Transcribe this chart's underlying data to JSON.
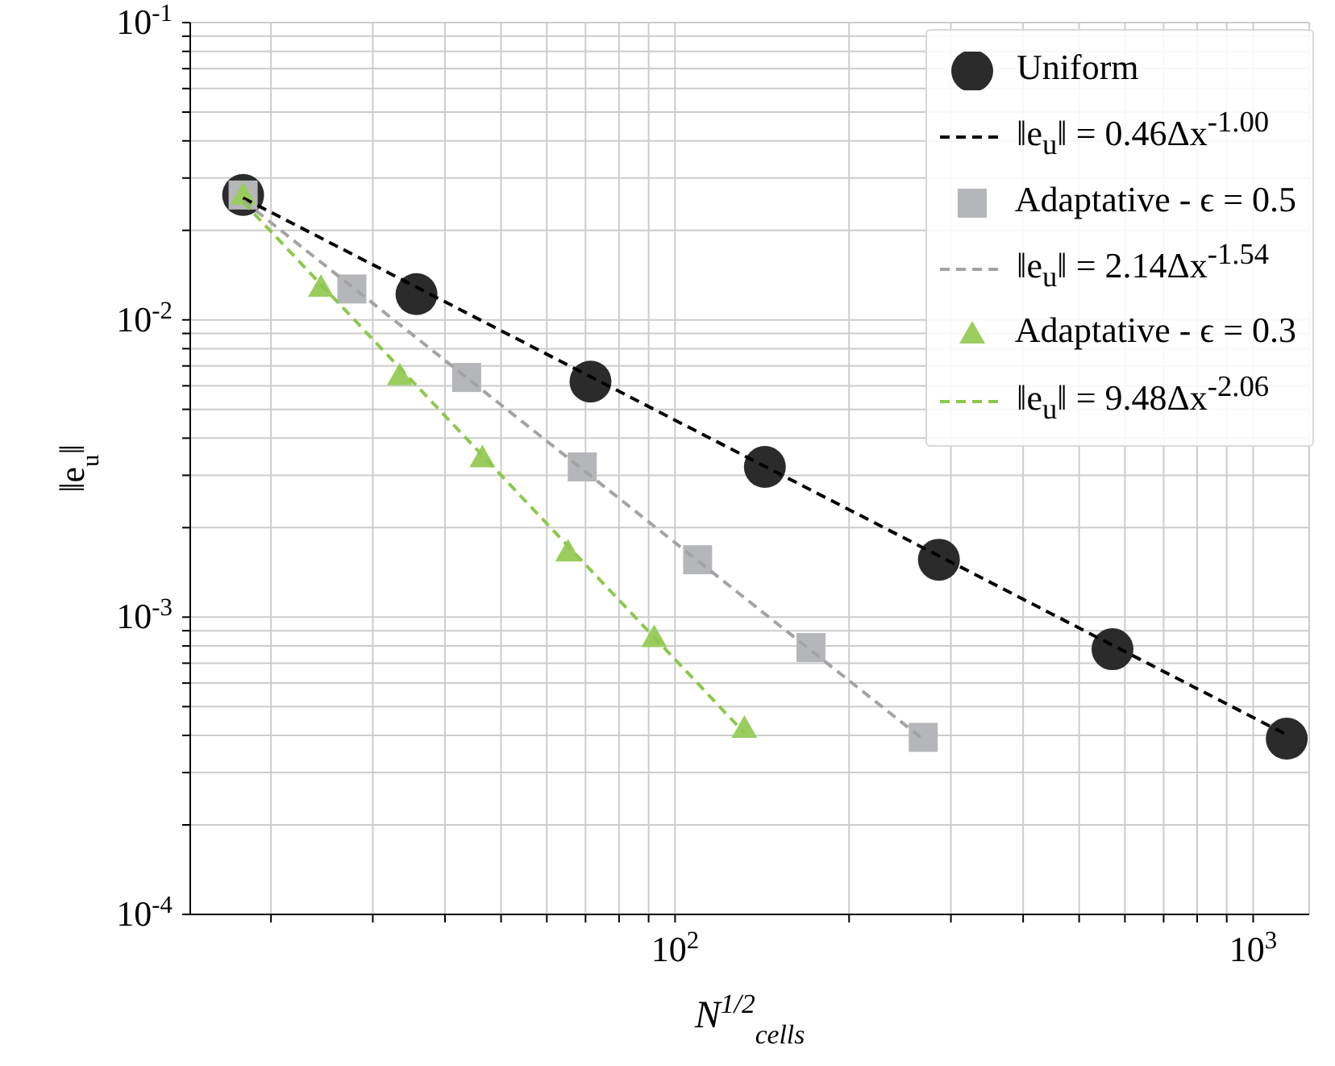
{
  "chart_data": {
    "type": "scatter",
    "xlabel": "N$^{1/2}$$_{cells}$",
    "ylabel": "‖e$_{u}$‖",
    "log": "xy",
    "grid": true,
    "legend": "top right",
    "xlim": [
      14.5,
      1250
    ],
    "ylim": [
      0.0001,
      0.1
    ],
    "xticks": [
      {
        "value": 20,
        "label": null
      },
      {
        "value": 30,
        "label": null
      },
      {
        "value": 40,
        "label": null
      },
      {
        "value": 50,
        "label": null
      },
      {
        "value": 60,
        "label": null
      },
      {
        "value": 70,
        "label": null
      },
      {
        "value": 80,
        "label": null
      },
      {
        "value": 90,
        "label": null
      },
      {
        "value": 100,
        "label": "10$^{2}$"
      },
      {
        "value": 200,
        "label": null
      },
      {
        "value": 300,
        "label": null
      },
      {
        "value": 400,
        "label": null
      },
      {
        "value": 500,
        "label": null
      },
      {
        "value": 600,
        "label": null
      },
      {
        "value": 700,
        "label": null
      },
      {
        "value": 800,
        "label": null
      },
      {
        "value": 900,
        "label": null
      },
      {
        "value": 1000,
        "label": "10$^{3}$"
      }
    ],
    "yticks": [
      {
        "value": 0.0001,
        "label": "10$^{-4}$"
      },
      {
        "value": 0.0002,
        "label": null
      },
      {
        "value": 0.0003,
        "label": null
      },
      {
        "value": 0.0004,
        "label": null
      },
      {
        "value": 0.0005,
        "label": null
      },
      {
        "value": 0.0006,
        "label": null
      },
      {
        "value": 0.0007,
        "label": null
      },
      {
        "value": 0.0008,
        "label": null
      },
      {
        "value": 0.0009,
        "label": null
      },
      {
        "value": 0.001,
        "label": "10$^{-3}$"
      },
      {
        "value": 0.002,
        "label": null
      },
      {
        "value": 0.003,
        "label": null
      },
      {
        "value": 0.004,
        "label": null
      },
      {
        "value": 0.005,
        "label": null
      },
      {
        "value": 0.006,
        "label": null
      },
      {
        "value": 0.007,
        "label": null
      },
      {
        "value": 0.008,
        "label": null
      },
      {
        "value": 0.009,
        "label": null
      },
      {
        "value": 0.01,
        "label": "10$^{-2}$"
      },
      {
        "value": 0.02,
        "label": null
      },
      {
        "value": 0.03,
        "label": null
      },
      {
        "value": 0.04,
        "label": null
      },
      {
        "value": 0.05,
        "label": null
      },
      {
        "value": 0.06,
        "label": null
      },
      {
        "value": 0.07,
        "label": null
      },
      {
        "value": 0.08,
        "label": null
      },
      {
        "value": 0.09,
        "label": null
      },
      {
        "value": 0.1,
        "label": "10$^{-1}$"
      }
    ],
    "series": [
      {
        "name": "Uniform",
        "marker": "circle",
        "color": "#2b2b2b",
        "x": [
          17.9,
          35.7,
          71.4,
          143,
          286,
          571,
          1143
        ],
        "values": [
          0.0263,
          0.0122,
          0.0062,
          0.0032,
          0.00156,
          0.00078,
          0.00039
        ]
      },
      {
        "name": "‖e$_{u}$‖ = 0.46Δx$^{-1.00}$",
        "type": "line",
        "marker": "none",
        "line_style": "dashed",
        "color": "#000000",
        "x": [
          17.9,
          1143
        ],
        "values": [
          0.0257,
          0.000402
        ]
      },
      {
        "name": "Adaptative - ϵ = 0.5",
        "marker": "square",
        "color": "#b5b6b9",
        "x": [
          17.9,
          27.6,
          43.6,
          69.1,
          109.4,
          171.8,
          268.7
        ],
        "values": [
          0.0263,
          0.0127,
          0.0064,
          0.0032,
          0.00156,
          0.00079,
          0.000394
        ]
      },
      {
        "name": "‖e$_{u}$‖ = 2.14Δx$^{-1.54}$",
        "type": "line",
        "marker": "none",
        "line_style": "dashed",
        "color": "#a3a3a3",
        "x": [
          17.9,
          268.7
        ],
        "values": [
          0.0252,
          0.000388
        ]
      },
      {
        "name": "Adaptative - ϵ = 0.3",
        "marker": "triangle",
        "color": "#9acd5e",
        "x": [
          17.9,
          24.4,
          33.4,
          46.4,
          65.3,
          92.0,
          131.8
        ],
        "values": [
          0.0263,
          0.0129,
          0.0065,
          0.00344,
          0.00166,
          0.000855,
          0.000423
        ]
      },
      {
        "name": "‖e$_{u}$‖ = 9.48Δx$^{-2.06}$",
        "type": "line",
        "marker": "none",
        "line_style": "dashed",
        "color": "#8cc84b",
        "x": [
          17.9,
          131.8
        ],
        "values": [
          0.0249,
          0.000408
        ]
      }
    ]
  }
}
